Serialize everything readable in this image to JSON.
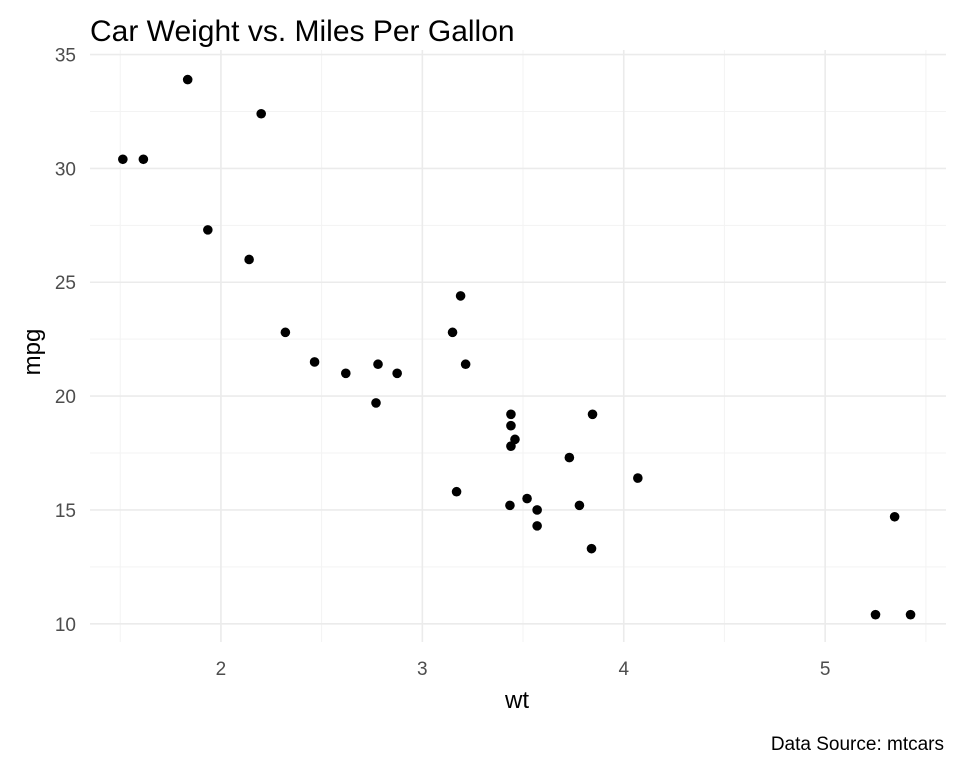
{
  "chart_data": {
    "type": "scatter",
    "title": "Car Weight vs. Miles Per Gallon",
    "xlabel": "wt",
    "ylabel": "mpg",
    "caption": "Data Source: mtcars",
    "xlim": [
      1.35,
      5.6
    ],
    "ylim": [
      9.2,
      35.2
    ],
    "x_ticks": [
      2,
      3,
      4,
      5
    ],
    "y_ticks": [
      10,
      15,
      20,
      25,
      30,
      35
    ],
    "x_minor_ticks": [
      1.5,
      2.5,
      3.5,
      4.5,
      5.5
    ],
    "y_minor_ticks": [
      12.5,
      17.5,
      22.5,
      27.5,
      32.5
    ],
    "grid": true,
    "point_color": "#000000",
    "points": [
      {
        "x": 2.62,
        "y": 21.0
      },
      {
        "x": 2.875,
        "y": 21.0
      },
      {
        "x": 2.32,
        "y": 22.8
      },
      {
        "x": 3.215,
        "y": 21.4
      },
      {
        "x": 3.44,
        "y": 18.7
      },
      {
        "x": 3.46,
        "y": 18.1
      },
      {
        "x": 3.57,
        "y": 14.3
      },
      {
        "x": 3.19,
        "y": 24.4
      },
      {
        "x": 3.15,
        "y": 22.8
      },
      {
        "x": 3.44,
        "y": 19.2
      },
      {
        "x": 3.44,
        "y": 17.8
      },
      {
        "x": 4.07,
        "y": 16.4
      },
      {
        "x": 3.73,
        "y": 17.3
      },
      {
        "x": 3.78,
        "y": 15.2
      },
      {
        "x": 5.25,
        "y": 10.4
      },
      {
        "x": 5.424,
        "y": 10.4
      },
      {
        "x": 5.345,
        "y": 14.7
      },
      {
        "x": 2.2,
        "y": 32.4
      },
      {
        "x": 1.615,
        "y": 30.4
      },
      {
        "x": 1.835,
        "y": 33.9
      },
      {
        "x": 2.465,
        "y": 21.5
      },
      {
        "x": 3.52,
        "y": 15.5
      },
      {
        "x": 3.435,
        "y": 15.2
      },
      {
        "x": 3.84,
        "y": 13.3
      },
      {
        "x": 3.845,
        "y": 19.2
      },
      {
        "x": 1.935,
        "y": 27.3
      },
      {
        "x": 2.14,
        "y": 26.0
      },
      {
        "x": 1.513,
        "y": 30.4
      },
      {
        "x": 3.17,
        "y": 15.8
      },
      {
        "x": 2.77,
        "y": 19.7
      },
      {
        "x": 3.57,
        "y": 15.0
      },
      {
        "x": 2.78,
        "y": 21.4
      }
    ]
  }
}
